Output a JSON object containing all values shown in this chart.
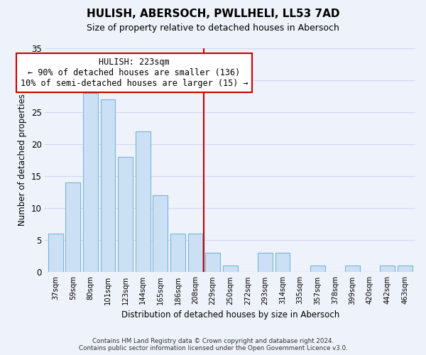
{
  "title": "HULISH, ABERSOCH, PWLLHELI, LL53 7AD",
  "subtitle": "Size of property relative to detached houses in Abersoch",
  "xlabel": "Distribution of detached houses by size in Abersoch",
  "ylabel": "Number of detached properties",
  "bar_labels": [
    "37sqm",
    "59sqm",
    "80sqm",
    "101sqm",
    "123sqm",
    "144sqm",
    "165sqm",
    "186sqm",
    "208sqm",
    "229sqm",
    "250sqm",
    "272sqm",
    "293sqm",
    "314sqm",
    "335sqm",
    "357sqm",
    "378sqm",
    "399sqm",
    "420sqm",
    "442sqm",
    "463sqm"
  ],
  "bar_values": [
    6,
    14,
    28,
    27,
    18,
    22,
    12,
    6,
    6,
    3,
    1,
    0,
    3,
    3,
    0,
    1,
    0,
    1,
    0,
    1,
    1
  ],
  "bar_color": "#cce0f5",
  "bar_edge_color": "#7ab4d8",
  "vline_x_idx": 8.5,
  "vline_color": "#cc0000",
  "annotation_line1": "HULISH: 223sqm",
  "annotation_line2": "← 90% of detached houses are smaller (136)",
  "annotation_line3": "10% of semi-detached houses are larger (15) →",
  "annotation_box_color": "#ffffff",
  "annotation_box_edge": "#cc0000",
  "ylim": [
    0,
    35
  ],
  "yticks": [
    0,
    5,
    10,
    15,
    20,
    25,
    30,
    35
  ],
  "background_color": "#eef2fa",
  "grid_color": "#d0d8ee",
  "footer_line1": "Contains HM Land Registry data © Crown copyright and database right 2024.",
  "footer_line2": "Contains public sector information licensed under the Open Government Licence v3.0."
}
